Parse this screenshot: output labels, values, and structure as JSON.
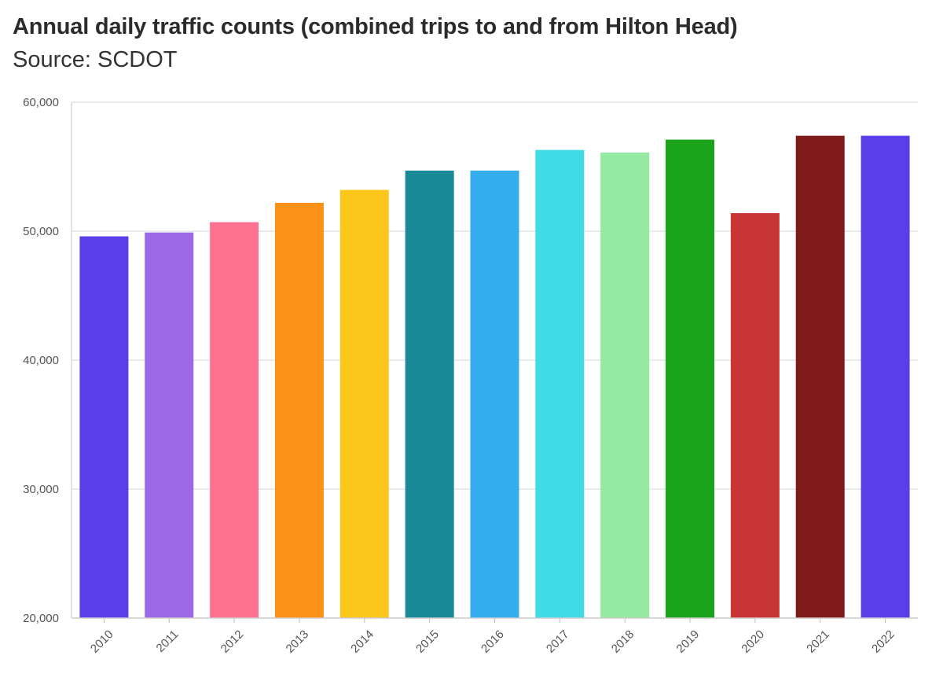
{
  "header": {
    "title": "Annual daily traffic counts (combined trips to and from Hilton Head)",
    "subtitle": "Source: SCDOT"
  },
  "chart_data": {
    "type": "bar",
    "title": "Annual daily traffic counts (combined trips to and from Hilton Head)",
    "subtitle": "Source: SCDOT",
    "xlabel": "",
    "ylabel": "",
    "categories": [
      "2010",
      "2011",
      "2012",
      "2013",
      "2014",
      "2015",
      "2016",
      "2017",
      "2018",
      "2019",
      "2020",
      "2021",
      "2022"
    ],
    "values": [
      49600,
      49900,
      50700,
      52200,
      53200,
      54700,
      54700,
      56300,
      56100,
      57100,
      51400,
      57400,
      57400
    ],
    "colors": [
      "#5a3fe8",
      "#9d68e6",
      "#ff7190",
      "#fb9217",
      "#fdc61b",
      "#1b8a98",
      "#33adeb",
      "#40dbe5",
      "#95e9a3",
      "#1ca31c",
      "#c83535",
      "#7e1a17",
      "#5a3fe8"
    ],
    "ylim": [
      20000,
      60000
    ],
    "yticks": [
      20000,
      30000,
      40000,
      50000,
      60000
    ],
    "ytick_labels": [
      "20,000",
      "30,000",
      "40,000",
      "50,000",
      "60,000"
    ],
    "grid": true,
    "legend": "none"
  }
}
